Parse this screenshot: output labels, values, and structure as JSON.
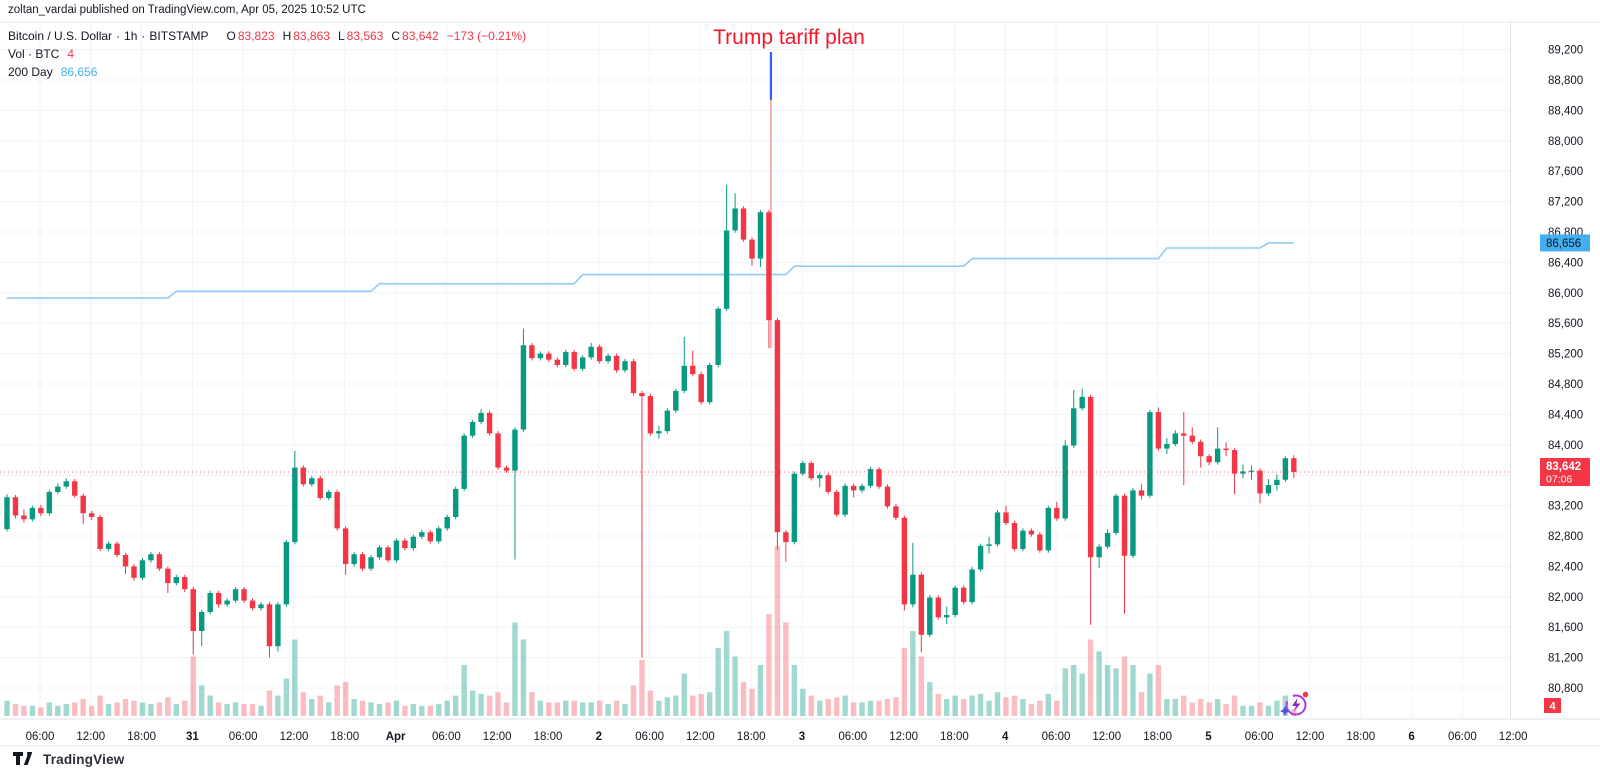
{
  "header": {
    "attribution": "zoltan_vardai published on TradingView.com, Apr 05, 2025 10:52 UTC"
  },
  "legend": {
    "title": "Bitcoin / U.S. Dollar",
    "separator": "·",
    "interval": "1h",
    "exchange": "BITSTAMP",
    "o_label": "O",
    "o_value": "83,823",
    "h_label": "H",
    "h_value": "83,863",
    "l_label": "L",
    "l_value": "83,563",
    "c_label": "C",
    "c_value": "83,642",
    "change": "−173 (−0.21%)",
    "volume_label": "Vol · BTC",
    "volume_value": "4",
    "ma_label": "200 Day",
    "ma_value": "86,656"
  },
  "annotation": {
    "text": "Trump tariff plan",
    "text_color": "#f5162a",
    "marker_candle_index": 90,
    "blue_segment_color": "#2962ff",
    "red_line_color": "#f77a80"
  },
  "badges": {
    "price": {
      "value": "83,642",
      "countdown": "07:06",
      "bg": "#f23645",
      "fg": "#ffffff"
    },
    "ma": {
      "value": "86,656",
      "bg": "#42b0f0",
      "fg": "#10131a"
    },
    "volume": {
      "value": "4",
      "bg": "#f23645",
      "fg": "#ffffff"
    }
  },
  "footer": {
    "brand": "TradingView"
  },
  "chart_data": {
    "type": "candlestick",
    "symbol": "BTCUSD",
    "exchange": "BITSTAMP",
    "interval": "1h",
    "start_time_utc": "2025-03-30 02:00",
    "end_time_utc": "2025-04-05 10:00",
    "current_price": 83642,
    "countdown": "07:06",
    "price_axis": {
      "min": 80600,
      "max": 89400,
      "grid_step": 400
    },
    "colors": {
      "up": "#089981",
      "down": "#f23645",
      "vol_up": "rgba(8,153,129,0.38)",
      "vol_down": "rgba(242,54,69,0.33)",
      "ma": "#8ecdf1",
      "grid": "#f0f3fa",
      "axis_text": "#131722",
      "axis_line": "#e0e3eb"
    },
    "y_ticks": [
      {
        "price": 89200,
        "label": "89,200"
      },
      {
        "price": 88800,
        "label": "88,800"
      },
      {
        "price": 88400,
        "label": "88,400"
      },
      {
        "price": 88000,
        "label": "88,000"
      },
      {
        "price": 87600,
        "label": "87,600"
      },
      {
        "price": 87200,
        "label": "87,200"
      },
      {
        "price": 86800,
        "label": "86,800"
      },
      {
        "price": 86400,
        "label": "86,400"
      },
      {
        "price": 86000,
        "label": "86,000"
      },
      {
        "price": 85600,
        "label": "85,600"
      },
      {
        "price": 85200,
        "label": "85,200"
      },
      {
        "price": 84800,
        "label": "84,800"
      },
      {
        "price": 84400,
        "label": "84,400"
      },
      {
        "price": 84000,
        "label": "84,000"
      },
      {
        "price": 83200,
        "label": "83,200"
      },
      {
        "price": 82800,
        "label": "82,800"
      },
      {
        "price": 82400,
        "label": "82,400"
      },
      {
        "price": 82000,
        "label": "82,000"
      },
      {
        "price": 81600,
        "label": "81,600"
      },
      {
        "price": 81200,
        "label": "81,200"
      },
      {
        "price": 80800,
        "label": "80,800"
      }
    ],
    "x_ticks": [
      {
        "label": "06:00",
        "major": false
      },
      {
        "label": "12:00",
        "major": false
      },
      {
        "label": "18:00",
        "major": false
      },
      {
        "label": "31",
        "major": true
      },
      {
        "label": "06:00",
        "major": false
      },
      {
        "label": "12:00",
        "major": false
      },
      {
        "label": "18:00",
        "major": false
      },
      {
        "label": "Apr",
        "major": true
      },
      {
        "label": "06:00",
        "major": false
      },
      {
        "label": "12:00",
        "major": false
      },
      {
        "label": "18:00",
        "major": false
      },
      {
        "label": "2",
        "major": true
      },
      {
        "label": "06:00",
        "major": false
      },
      {
        "label": "12:00",
        "major": false
      },
      {
        "label": "18:00",
        "major": false
      },
      {
        "label": "3",
        "major": true
      },
      {
        "label": "06:00",
        "major": false
      },
      {
        "label": "12:00",
        "major": false
      },
      {
        "label": "18:00",
        "major": false
      },
      {
        "label": "4",
        "major": true
      },
      {
        "label": "06:00",
        "major": false
      },
      {
        "label": "12:00",
        "major": false
      },
      {
        "label": "18:00",
        "major": false
      },
      {
        "label": "5",
        "major": true
      },
      {
        "label": "06:00",
        "major": false
      },
      {
        "label": "12:00",
        "major": false
      },
      {
        "label": "18:00",
        "major": false
      },
      {
        "label": "6",
        "major": true
      },
      {
        "label": "06:00",
        "major": false
      },
      {
        "label": "12:00",
        "major": false
      }
    ],
    "ma200d": {
      "label": "200 Day",
      "current": 86656,
      "steps": [
        [
          0,
          85930
        ],
        [
          20,
          86020
        ],
        [
          44,
          86120
        ],
        [
          68,
          86240
        ],
        [
          93,
          86350
        ],
        [
          114,
          86450
        ],
        [
          137,
          86590
        ],
        [
          149,
          86656
        ]
      ]
    },
    "candles_format": [
      "open",
      "high",
      "low",
      "close",
      "rel_volume_0_100"
    ],
    "candles": [
      [
        82890,
        83350,
        82860,
        83310,
        9
      ],
      [
        83310,
        83340,
        83030,
        83070,
        7
      ],
      [
        83070,
        83150,
        82980,
        83020,
        6
      ],
      [
        83020,
        83200,
        82990,
        83170,
        6
      ],
      [
        83170,
        83210,
        83060,
        83100,
        5
      ],
      [
        83100,
        83410,
        83070,
        83380,
        8
      ],
      [
        83380,
        83490,
        83350,
        83450,
        6
      ],
      [
        83450,
        83560,
        83420,
        83520,
        7
      ],
      [
        83520,
        83550,
        83300,
        83330,
        8
      ],
      [
        83330,
        83360,
        82960,
        83100,
        10
      ],
      [
        83100,
        83130,
        83010,
        83050,
        6
      ],
      [
        83050,
        83080,
        82600,
        82630,
        12
      ],
      [
        82630,
        82730,
        82600,
        82700,
        7
      ],
      [
        82700,
        82730,
        82520,
        82550,
        8
      ],
      [
        82550,
        82580,
        82300,
        82400,
        10
      ],
      [
        82400,
        82430,
        82210,
        82250,
        9
      ],
      [
        82250,
        82510,
        82220,
        82480,
        8
      ],
      [
        82480,
        82590,
        82450,
        82560,
        7
      ],
      [
        82560,
        82590,
        82340,
        82370,
        8
      ],
      [
        82370,
        82400,
        82050,
        82180,
        11
      ],
      [
        82180,
        82290,
        82150,
        82260,
        7
      ],
      [
        82260,
        82290,
        82060,
        82100,
        9
      ],
      [
        82100,
        82130,
        81240,
        81550,
        35
      ],
      [
        81550,
        81830,
        81350,
        81800,
        18
      ],
      [
        81800,
        82080,
        81770,
        82050,
        12
      ],
      [
        82050,
        82080,
        81860,
        81900,
        8
      ],
      [
        81900,
        81980,
        81870,
        81950,
        7
      ],
      [
        81950,
        82130,
        81920,
        82100,
        8
      ],
      [
        82100,
        82130,
        81920,
        81950,
        7
      ],
      [
        81950,
        81980,
        81820,
        81850,
        7
      ],
      [
        81850,
        81930,
        81820,
        81900,
        6
      ],
      [
        81900,
        81930,
        81200,
        81350,
        15
      ],
      [
        81350,
        81930,
        81280,
        81900,
        12
      ],
      [
        81900,
        82750,
        81870,
        82720,
        22
      ],
      [
        82720,
        83920,
        82690,
        83700,
        45
      ],
      [
        83700,
        83730,
        83450,
        83480,
        14
      ],
      [
        83480,
        83590,
        83450,
        83560,
        10
      ],
      [
        83560,
        83590,
        83270,
        83300,
        12
      ],
      [
        83300,
        83410,
        83270,
        83380,
        8
      ],
      [
        83380,
        83410,
        82870,
        82900,
        18
      ],
      [
        82900,
        82930,
        82290,
        82430,
        20
      ],
      [
        82430,
        82590,
        82400,
        82560,
        10
      ],
      [
        82560,
        82590,
        82340,
        82370,
        9
      ],
      [
        82370,
        82550,
        82340,
        82520,
        8
      ],
      [
        82520,
        82680,
        82490,
        82650,
        7
      ],
      [
        82650,
        82680,
        82450,
        82480,
        8
      ],
      [
        82480,
        82770,
        82450,
        82740,
        9
      ],
      [
        82740,
        82770,
        82610,
        82640,
        6
      ],
      [
        82640,
        82820,
        82610,
        82790,
        7
      ],
      [
        82790,
        82880,
        82760,
        82850,
        6
      ],
      [
        82850,
        82880,
        82700,
        82730,
        6
      ],
      [
        82730,
        82930,
        82700,
        82900,
        7
      ],
      [
        82900,
        83080,
        82870,
        83050,
        9
      ],
      [
        83050,
        83450,
        83020,
        83420,
        12
      ],
      [
        83420,
        84150,
        83390,
        84120,
        30
      ],
      [
        84120,
        84330,
        84090,
        84300,
        15
      ],
      [
        84300,
        84470,
        84270,
        84420,
        13
      ],
      [
        84420,
        84450,
        84120,
        84150,
        12
      ],
      [
        84150,
        84180,
        83670,
        83700,
        14
      ],
      [
        83700,
        83730,
        83630,
        83660,
        8
      ],
      [
        83660,
        84230,
        82490,
        84200,
        55
      ],
      [
        84200,
        85530,
        84170,
        85310,
        45
      ],
      [
        85310,
        85340,
        85110,
        85140,
        14
      ],
      [
        85140,
        85230,
        85110,
        85200,
        9
      ],
      [
        85200,
        85230,
        85090,
        85120,
        8
      ],
      [
        85120,
        85150,
        85020,
        85050,
        8
      ],
      [
        85050,
        85250,
        85020,
        85220,
        9
      ],
      [
        85220,
        85250,
        84970,
        85000,
        9
      ],
      [
        85000,
        85180,
        84970,
        85150,
        8
      ],
      [
        85150,
        85340,
        85120,
        85290,
        8
      ],
      [
        85290,
        85320,
        85070,
        85100,
        9
      ],
      [
        85100,
        85200,
        85070,
        85170,
        7
      ],
      [
        85170,
        85200,
        84950,
        84980,
        9
      ],
      [
        84980,
        85130,
        84950,
        85100,
        7
      ],
      [
        85100,
        85130,
        84650,
        84680,
        18
      ],
      [
        84680,
        84710,
        81200,
        84640,
        33
      ],
      [
        84640,
        84670,
        84120,
        84150,
        15
      ],
      [
        84150,
        84250,
        84080,
        84180,
        9
      ],
      [
        84180,
        84480,
        84150,
        84450,
        11
      ],
      [
        84450,
        84740,
        84420,
        84710,
        12
      ],
      [
        84710,
        85420,
        84680,
        85040,
        25
      ],
      [
        85040,
        85240,
        84900,
        84930,
        12
      ],
      [
        84930,
        84960,
        84530,
        84560,
        13
      ],
      [
        84560,
        85080,
        84530,
        85050,
        14
      ],
      [
        85050,
        85820,
        85020,
        85790,
        40
      ],
      [
        85790,
        87420,
        85760,
        86820,
        50
      ],
      [
        86820,
        87310,
        86790,
        87110,
        35
      ],
      [
        87110,
        87140,
        86670,
        86700,
        20
      ],
      [
        86700,
        86730,
        86360,
        86450,
        16
      ],
      [
        86450,
        87090,
        86340,
        87060,
        30
      ],
      [
        87060,
        87090,
        85270,
        85640,
        60
      ],
      [
        85640,
        85670,
        82620,
        82850,
        100
      ],
      [
        82850,
        82880,
        82460,
        82720,
        55
      ],
      [
        82720,
        83650,
        82690,
        83620,
        30
      ],
      [
        83620,
        83790,
        83590,
        83760,
        16
      ],
      [
        83760,
        83790,
        83530,
        83560,
        12
      ],
      [
        83560,
        83630,
        83440,
        83600,
        9
      ],
      [
        83600,
        83630,
        83350,
        83380,
        10
      ],
      [
        83380,
        83410,
        83050,
        83080,
        11
      ],
      [
        83080,
        83490,
        83050,
        83460,
        12
      ],
      [
        83460,
        83490,
        83310,
        83400,
        8
      ],
      [
        83400,
        83490,
        83370,
        83460,
        8
      ],
      [
        83460,
        83710,
        83430,
        83680,
        9
      ],
      [
        83680,
        83710,
        83420,
        83450,
        9
      ],
      [
        83450,
        83480,
        83160,
        83190,
        10
      ],
      [
        83190,
        83220,
        83010,
        83040,
        11
      ],
      [
        83040,
        83070,
        81820,
        81900,
        40
      ],
      [
        81900,
        82710,
        81860,
        82290,
        50
      ],
      [
        82290,
        82320,
        81270,
        81500,
        35
      ],
      [
        81500,
        82020,
        81470,
        81990,
        20
      ],
      [
        81990,
        82020,
        81700,
        81730,
        13
      ],
      [
        81730,
        81870,
        81640,
        81760,
        10
      ],
      [
        81760,
        82150,
        81730,
        82120,
        12
      ],
      [
        82120,
        82150,
        81900,
        81930,
        10
      ],
      [
        81930,
        82390,
        81900,
        82360,
        12
      ],
      [
        82360,
        82700,
        82330,
        82670,
        13
      ],
      [
        82670,
        82790,
        82570,
        82690,
        9
      ],
      [
        82690,
        83140,
        82660,
        83110,
        14
      ],
      [
        83110,
        83200,
        82940,
        82970,
        11
      ],
      [
        82970,
        83000,
        82600,
        82630,
        12
      ],
      [
        82630,
        82900,
        82600,
        82870,
        10
      ],
      [
        82870,
        82900,
        82790,
        82820,
        7
      ],
      [
        82820,
        82850,
        82580,
        82610,
        9
      ],
      [
        82610,
        83200,
        82580,
        83170,
        13
      ],
      [
        83170,
        83250,
        83000,
        83030,
        9
      ],
      [
        83030,
        84060,
        83000,
        83990,
        28
      ],
      [
        83990,
        84720,
        83960,
        84480,
        30
      ],
      [
        84480,
        84740,
        84450,
        84630,
        25
      ],
      [
        84630,
        84660,
        81630,
        82520,
        45
      ],
      [
        82520,
        82690,
        82380,
        82660,
        38
      ],
      [
        82660,
        82890,
        82630,
        82840,
        30
      ],
      [
        82840,
        83360,
        82810,
        83330,
        28
      ],
      [
        83330,
        83360,
        81780,
        82540,
        35
      ],
      [
        82540,
        83430,
        82510,
        83400,
        30
      ],
      [
        83400,
        83480,
        83280,
        83330,
        14
      ],
      [
        83330,
        84460,
        83300,
        84430,
        25
      ],
      [
        84430,
        84490,
        83920,
        83950,
        30
      ],
      [
        83950,
        84090,
        83880,
        84010,
        10
      ],
      [
        84010,
        84190,
        83980,
        84150,
        10
      ],
      [
        84150,
        84430,
        83470,
        84120,
        12
      ],
      [
        84120,
        84230,
        84010,
        84040,
        8
      ],
      [
        84040,
        84070,
        83700,
        83850,
        10
      ],
      [
        83850,
        83880,
        83730,
        83770,
        8
      ],
      [
        83770,
        84230,
        83740,
        83950,
        10
      ],
      [
        83950,
        84030,
        83850,
        83930,
        7
      ],
      [
        83930,
        83960,
        83350,
        83620,
        12
      ],
      [
        83620,
        83740,
        83560,
        83650,
        6
      ],
      [
        83650,
        83730,
        83540,
        83660,
        6
      ],
      [
        83660,
        83690,
        83230,
        83360,
        8
      ],
      [
        83360,
        83550,
        83330,
        83470,
        6
      ],
      [
        83470,
        83610,
        83400,
        83540,
        9
      ],
      [
        83540,
        83850,
        83510,
        83823,
        12
      ],
      [
        83823,
        83863,
        83563,
        83642,
        4
      ]
    ]
  }
}
